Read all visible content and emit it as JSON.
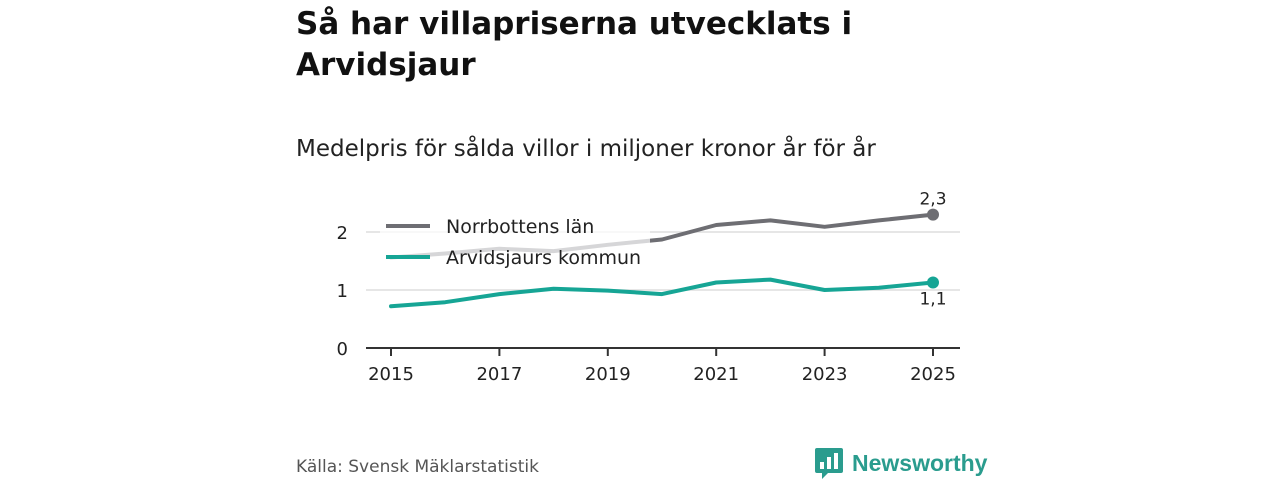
{
  "title": "Så har villapriserna utvecklats i Arvidsjaur",
  "subtitle": "Medelpris för sålda villor i miljoner kronor år för år",
  "source": "Källa: Svensk Mäklarstatistik",
  "brand": "Newsworthy",
  "chart_data": {
    "type": "line",
    "x": [
      2015,
      2016,
      2017,
      2018,
      2019,
      2020,
      2021,
      2022,
      2023,
      2024,
      2025
    ],
    "x_ticks": [
      "2015",
      "2017",
      "2019",
      "2021",
      "2023",
      "2025"
    ],
    "y_ticks": [
      "0",
      "1",
      "2"
    ],
    "ylim": [
      0,
      2.5
    ],
    "series": [
      {
        "name": "Norrbottens län",
        "color": "#6e6e73",
        "values": [
          1.56,
          1.63,
          1.71,
          1.67,
          1.78,
          1.87,
          2.12,
          2.2,
          2.09,
          2.2,
          2.3
        ],
        "end_label": "2,3"
      },
      {
        "name": "Arvidsjaurs kommun",
        "color": "#16a595",
        "values": [
          0.72,
          0.79,
          0.93,
          1.02,
          0.99,
          0.93,
          1.13,
          1.18,
          1.0,
          1.04,
          1.13
        ],
        "end_label": "1,1"
      }
    ]
  }
}
